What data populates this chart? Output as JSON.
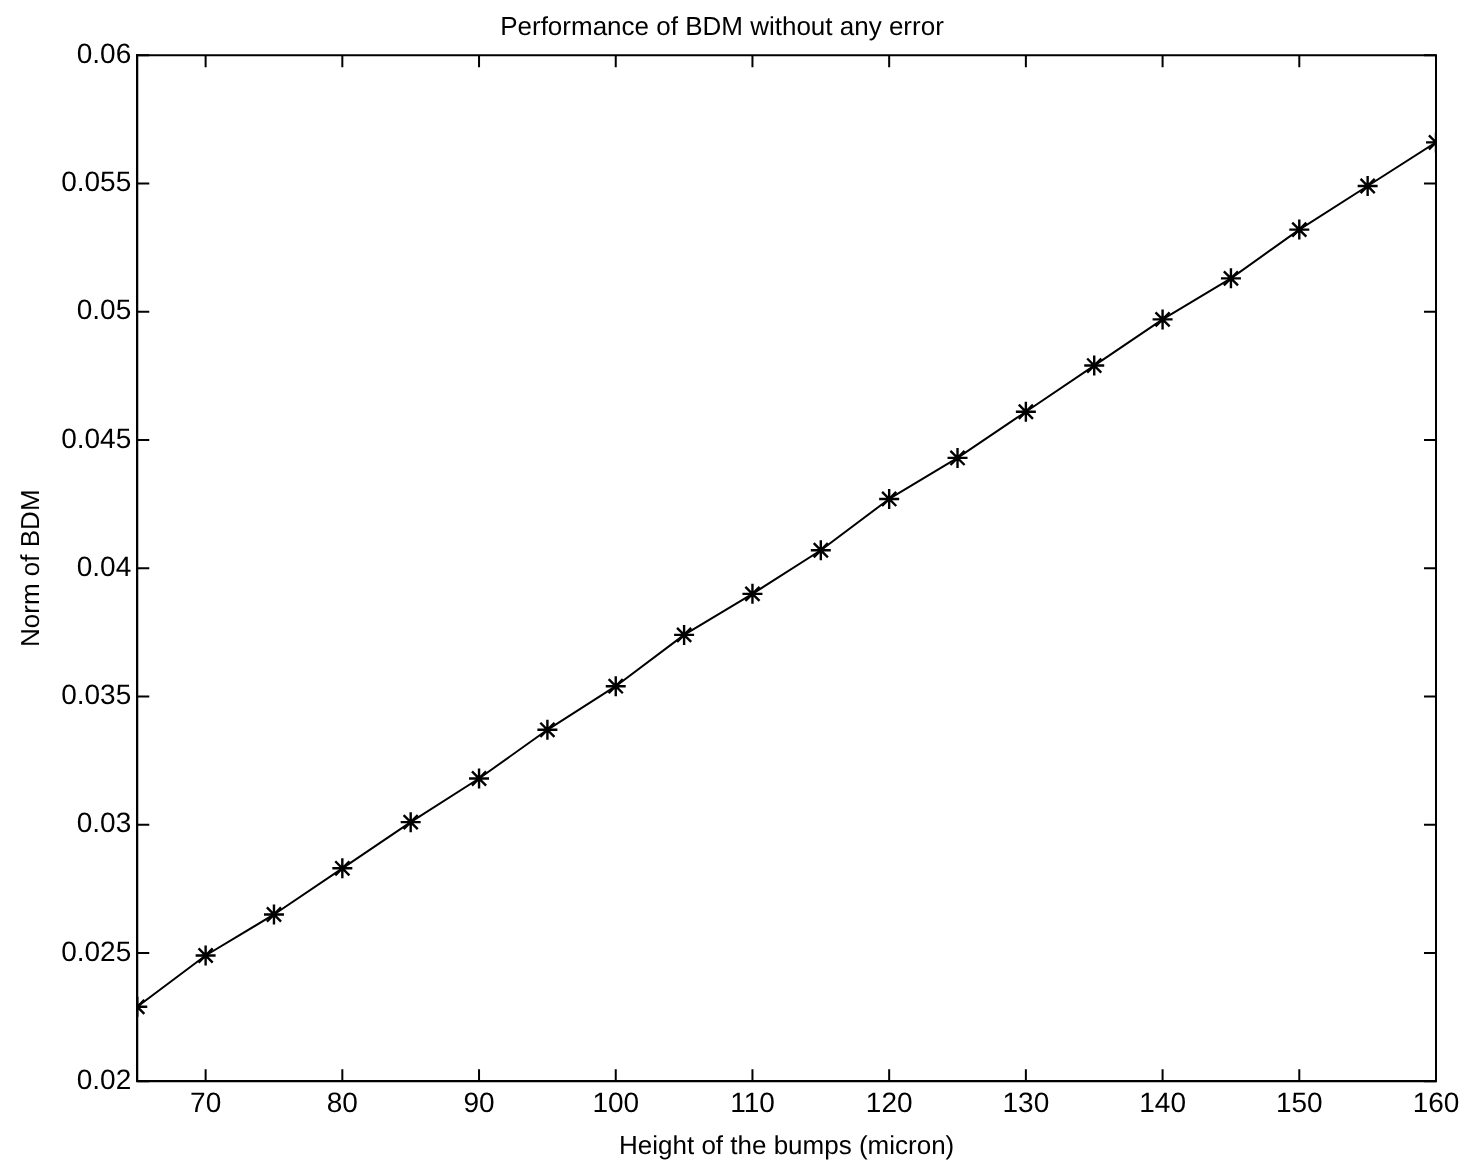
{
  "chart_data": {
    "type": "line",
    "title": "Performance of BDM without any error",
    "xlabel": "Height of the bumps (micron)",
    "ylabel": "Norm of BDM",
    "x": [
      65,
      70,
      75,
      80,
      85,
      90,
      95,
      100,
      105,
      110,
      115,
      120,
      125,
      130,
      135,
      140,
      145,
      150,
      155,
      160
    ],
    "series": [
      {
        "color": "#000000",
        "values": [
          0.0229,
          0.0249,
          0.0265,
          0.0283,
          0.0301,
          0.0318,
          0.0337,
          0.0354,
          0.0374,
          0.039,
          0.0407,
          0.0427,
          0.0443,
          0.0461,
          0.0479,
          0.0497,
          0.0513,
          0.0532,
          0.0549,
          0.0566
        ]
      }
    ],
    "xlim": [
      65,
      160
    ],
    "xticks": [
      70,
      80,
      90,
      100,
      110,
      120,
      130,
      140,
      150,
      160
    ],
    "ylim": [
      0.02,
      0.06
    ],
    "yticks": [
      0.02,
      0.025,
      0.03,
      0.035,
      0.04,
      0.045,
      0.05,
      0.055,
      0.06
    ],
    "grid": false,
    "legend": false,
    "marker": "cross",
    "line_style": "solid"
  }
}
